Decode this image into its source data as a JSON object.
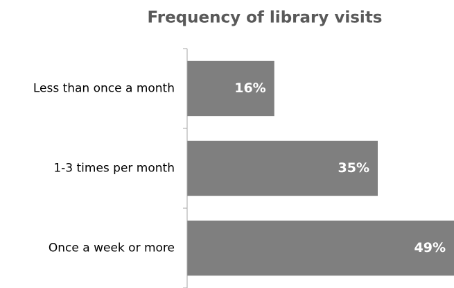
{
  "chart_data": {
    "type": "hbar",
    "title": "Frequency of library visits",
    "categories": [
      "Less than once a month",
      "1-3 times per month",
      "Once a week or more"
    ],
    "values": [
      16,
      35,
      49
    ],
    "value_labels": [
      "16%",
      "35%",
      "49%"
    ],
    "color": "#7f7f7f"
  }
}
